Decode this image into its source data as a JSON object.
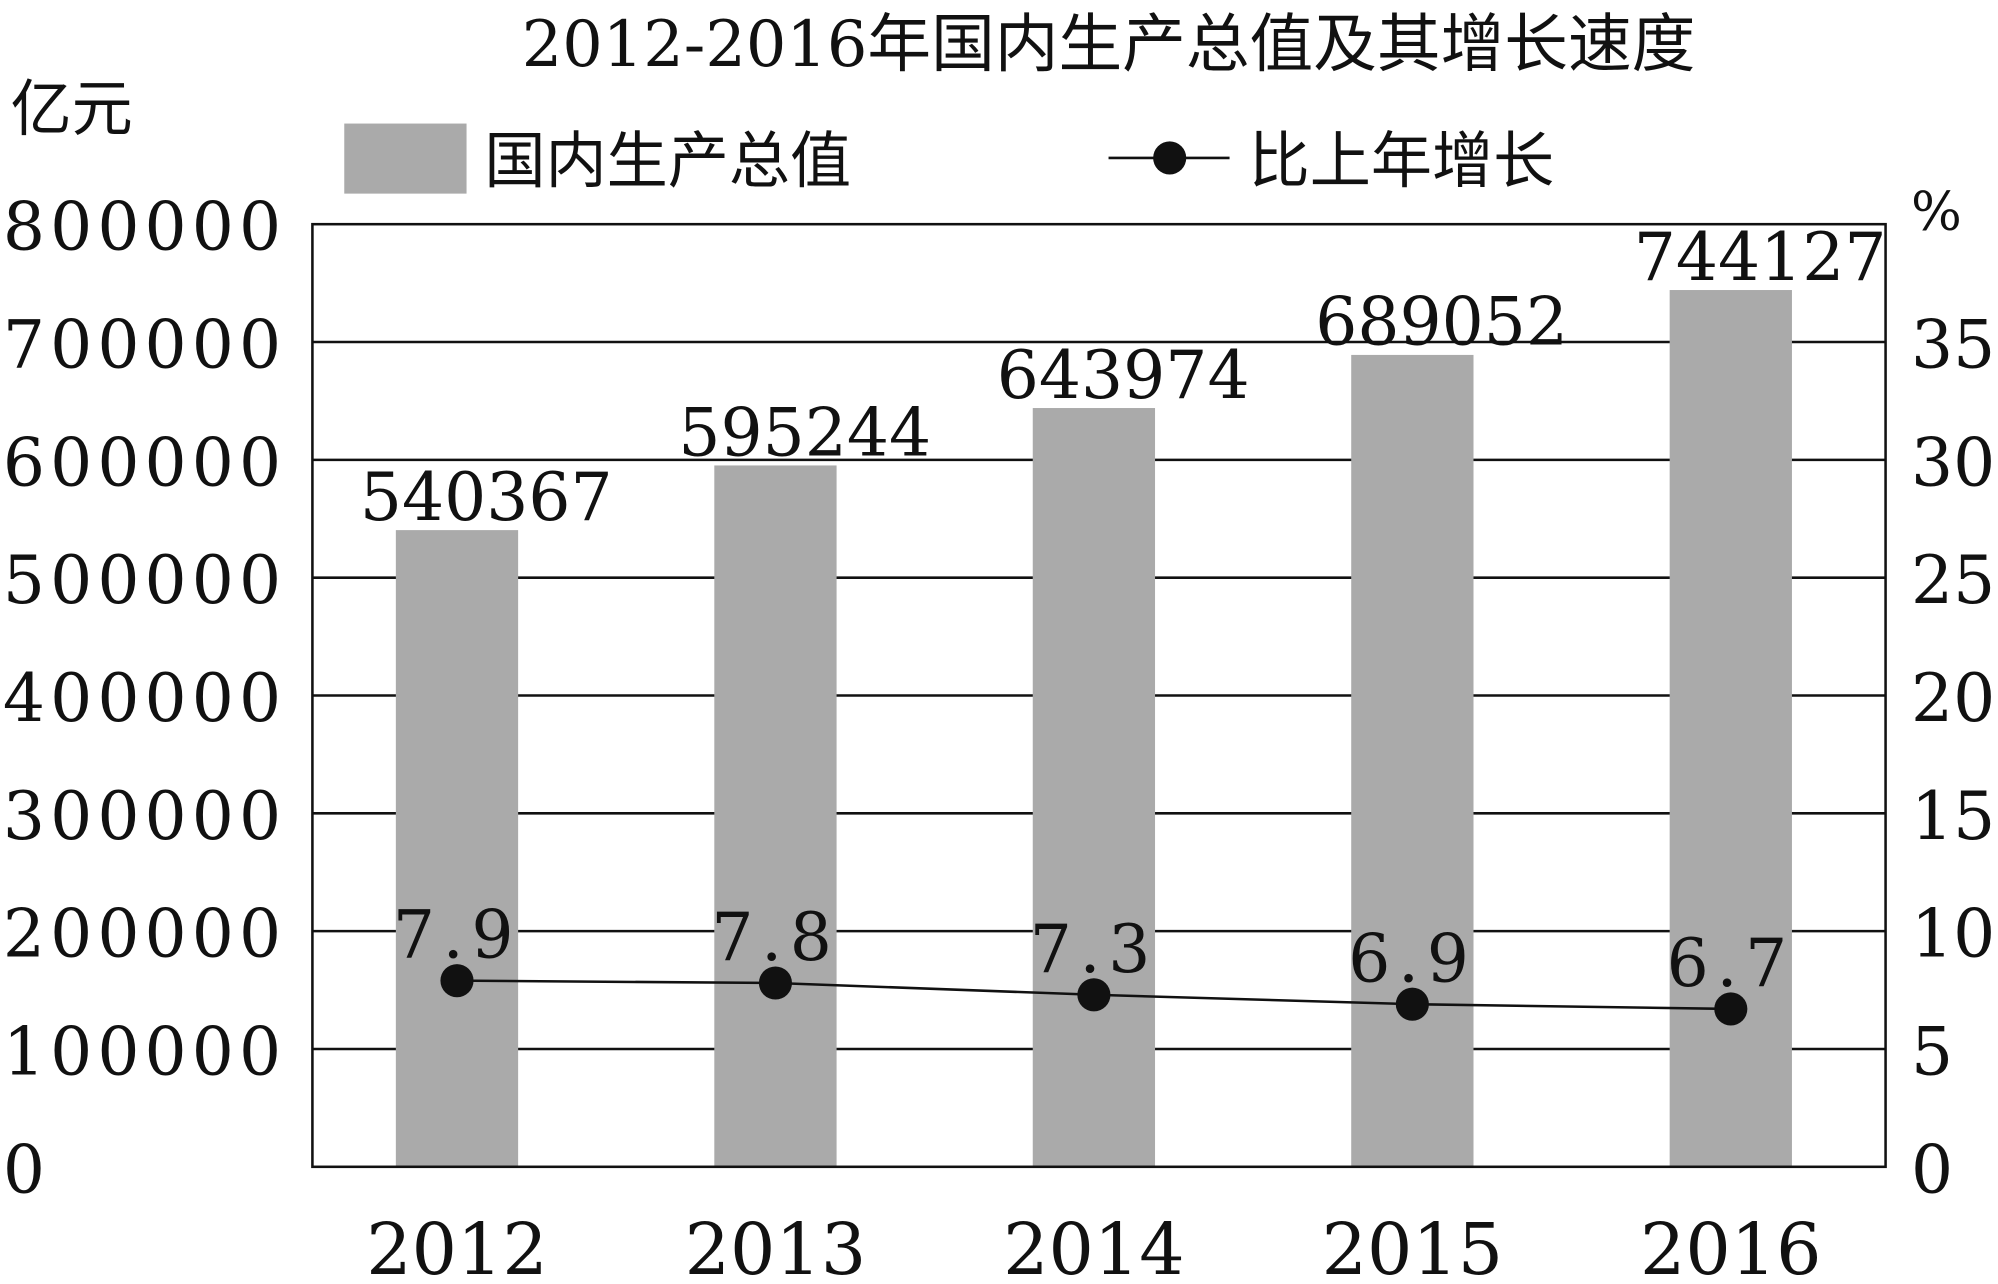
{
  "chart_data": {
    "type": "bar",
    "title": "2012-2016年国内生产总值及其增长速度",
    "ylabel": "亿元",
    "y2label": "%",
    "categories": [
      "2012",
      "2013",
      "2014",
      "2015",
      "2016"
    ],
    "ylim": [
      0,
      800000
    ],
    "y2lim": [
      0,
      40
    ],
    "yticks": [
      "0",
      "100000",
      "200000",
      "300000",
      "400000",
      "500000",
      "600000",
      "700000",
      "800000"
    ],
    "y2ticks": [
      "0",
      "5",
      "10",
      "15",
      "20",
      "25",
      "30",
      "35"
    ],
    "grid": true,
    "legend_placement": "top",
    "series": [
      {
        "name": "国内生产总值",
        "type": "bar",
        "axis": "left",
        "color": "#aaaaaa",
        "values": [
          540367,
          595244,
          643974,
          689052,
          744127
        ],
        "labels": [
          "540367",
          "595244",
          "643974",
          "689052",
          "744127"
        ]
      },
      {
        "name": "比上年增长",
        "type": "line",
        "axis": "right",
        "color": "#111111",
        "values": [
          7.9,
          7.8,
          7.3,
          6.9,
          6.7
        ],
        "labels": [
          "7.9",
          "7.8",
          "7.3",
          "6.9",
          "6.7"
        ]
      }
    ]
  }
}
